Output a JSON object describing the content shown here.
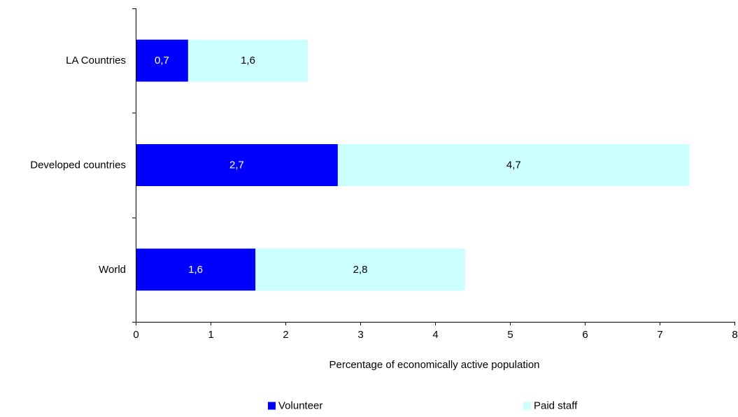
{
  "chart_data": {
    "type": "bar",
    "orientation": "horizontal",
    "stacked": true,
    "categories": [
      "LA Countries",
      "Developed countries",
      "World"
    ],
    "series": [
      {
        "name": "Volunteer",
        "values": [
          0.7,
          2.7,
          1.6
        ],
        "labels": [
          "0,7",
          "2,7",
          "1,6"
        ],
        "color": "#0000ff",
        "label_color": "#ffffff"
      },
      {
        "name": "Paid staff",
        "values": [
          1.6,
          4.7,
          2.8
        ],
        "labels": [
          "1,6",
          "4,7",
          "2,8"
        ],
        "color": "#ccffff",
        "label_color": "#000000"
      }
    ],
    "xlim": [
      0,
      8
    ],
    "xticks": [
      "0",
      "1",
      "2",
      "3",
      "4",
      "5",
      "6",
      "7",
      "8"
    ],
    "xlabel": "Percentage of economically active population",
    "ylabel": "",
    "title": "",
    "grid": false,
    "legend_position": "bottom"
  }
}
